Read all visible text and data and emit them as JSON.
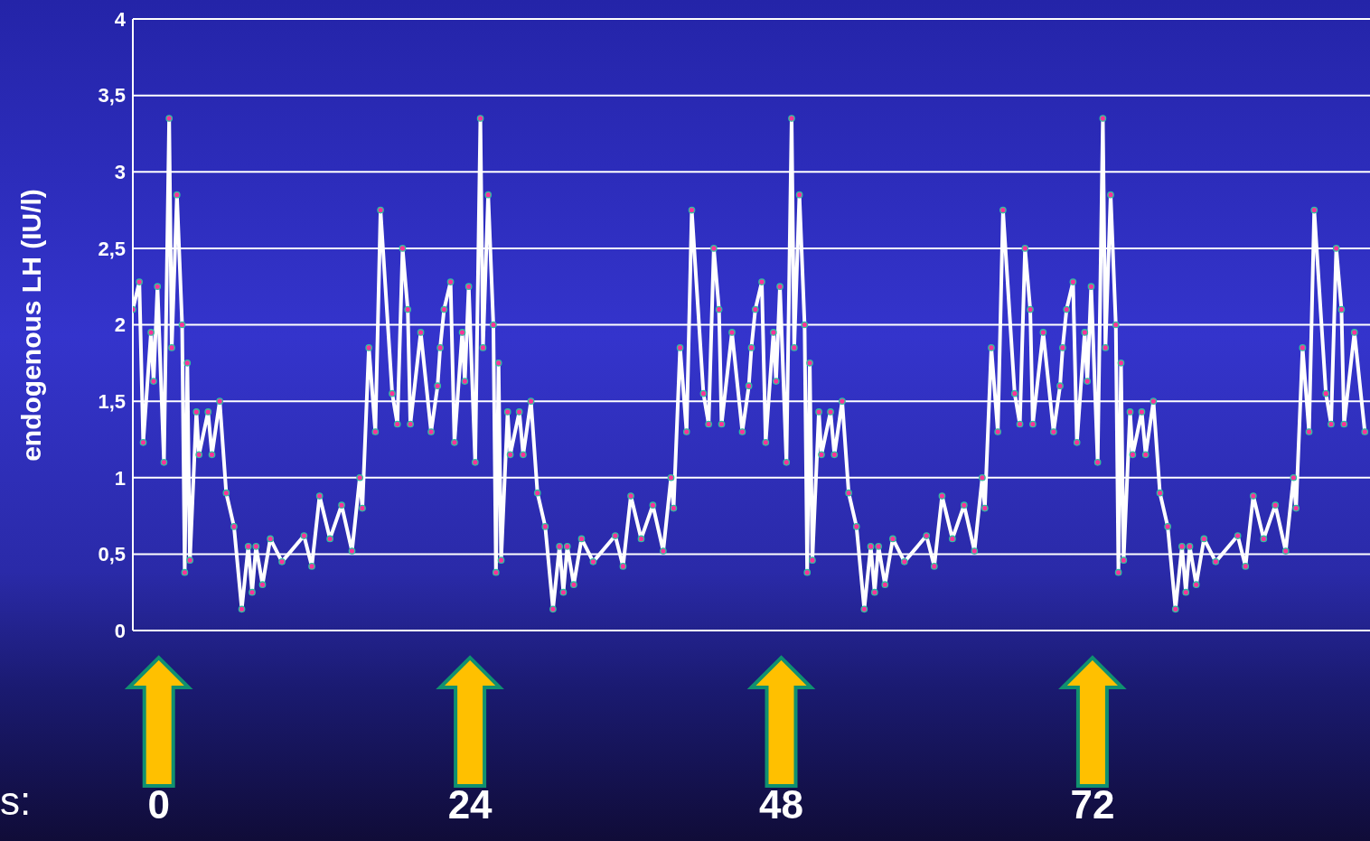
{
  "chart_data": {
    "type": "line",
    "ylabel": "endogenous LH (IU/l)",
    "xlabel": "s:",
    "x": [
      -2.0,
      -1.5,
      -1.2,
      -0.6,
      -0.4,
      -0.1,
      0.4,
      0.8,
      1.0,
      1.4,
      1.8,
      2.0,
      2.2,
      2.4,
      2.9,
      3.1,
      3.8,
      4.1,
      4.7,
      5.2,
      5.8,
      6.4,
      6.9,
      7.2,
      7.5,
      8.0,
      8.6,
      9.5,
      11.2,
      11.8,
      12.4,
      13.2,
      14.1,
      14.9,
      15.5,
      15.7,
      16.2,
      16.7,
      17.1,
      18.0,
      18.4,
      18.8,
      19.2,
      19.4,
      20.2,
      21.0,
      21.5,
      21.7,
      22.0,
      22.5,
      22.8,
      23.4,
      23.6,
      23.9,
      24.4,
      24.8,
      25.0,
      25.4,
      25.8,
      26.0,
      26.2,
      26.4,
      26.9,
      27.1,
      27.8,
      28.1,
      28.7,
      29.2,
      29.8,
      30.4,
      30.9,
      31.2,
      31.5,
      32.0,
      32.6,
      33.5,
      35.2,
      35.8,
      36.4,
      37.2,
      38.1,
      38.9,
      39.5,
      39.7,
      40.2,
      40.7,
      41.1,
      42.0,
      42.4,
      42.8,
      43.2,
      43.4,
      44.2,
      45.0,
      45.5,
      45.7,
      46.0,
      46.5,
      46.8,
      47.4,
      47.6,
      47.9,
      48.4,
      48.8,
      49.0,
      49.4,
      49.8,
      50.0,
      50.2,
      50.4,
      50.9,
      51.1,
      51.8,
      52.1,
      52.7,
      53.2,
      53.8,
      54.4,
      54.9,
      55.2,
      55.5,
      56.0,
      56.6,
      57.5,
      59.2,
      59.8,
      60.4,
      61.2,
      62.1,
      62.9,
      63.5,
      63.7,
      64.2,
      64.7,
      65.1,
      66.0,
      66.4,
      66.8,
      67.2,
      67.4,
      68.2,
      69.0,
      69.5,
      69.7,
      70.0,
      70.5,
      70.8,
      71.4,
      71.6,
      71.9,
      72.4,
      72.8,
      73.0,
      73.4,
      73.8,
      74.0,
      74.2,
      74.4,
      74.9,
      75.1,
      75.8,
      76.1,
      76.7,
      77.2,
      77.8,
      78.4,
      78.9,
      79.2,
      79.5,
      80.0,
      80.6,
      81.5,
      83.2,
      83.8,
      84.4,
      85.2,
      86.1,
      86.9,
      87.5,
      87.7,
      88.2,
      88.7,
      89.1,
      90.0,
      90.4,
      90.8,
      91.2,
      91.4,
      92.2,
      93.0
    ],
    "series": [
      {
        "color": "#ffffff",
        "values": [
          2.1,
          2.28,
          1.23,
          1.95,
          1.63,
          2.25,
          1.1,
          3.35,
          1.85,
          2.85,
          2.0,
          0.38,
          1.75,
          0.46,
          1.43,
          1.15,
          1.43,
          1.15,
          1.5,
          0.9,
          0.68,
          0.14,
          0.55,
          0.25,
          0.55,
          0.3,
          0.6,
          0.45,
          0.62,
          0.42,
          0.88,
          0.6,
          0.82,
          0.52,
          1.0,
          0.8,
          1.85,
          1.3,
          2.75,
          1.55,
          1.35,
          2.5,
          2.1,
          1.35,
          1.95,
          1.3,
          1.6,
          1.85,
          2.1,
          2.28,
          1.23,
          1.95,
          1.63,
          2.25,
          1.1,
          3.35,
          1.85,
          2.85,
          2.0,
          0.38,
          1.75,
          0.46,
          1.43,
          1.15,
          1.43,
          1.15,
          1.5,
          0.9,
          0.68,
          0.14,
          0.55,
          0.25,
          0.55,
          0.3,
          0.6,
          0.45,
          0.62,
          0.42,
          0.88,
          0.6,
          0.82,
          0.52,
          1.0,
          0.8,
          1.85,
          1.3,
          2.75,
          1.55,
          1.35,
          2.5,
          2.1,
          1.35,
          1.95,
          1.3,
          1.6,
          1.85,
          2.1,
          2.28,
          1.23,
          1.95,
          1.63,
          2.25,
          1.1,
          3.35,
          1.85,
          2.85,
          2.0,
          0.38,
          1.75,
          0.46,
          1.43,
          1.15,
          1.43,
          1.15,
          1.5,
          0.9,
          0.68,
          0.14,
          0.55,
          0.25,
          0.55,
          0.3,
          0.6,
          0.45,
          0.62,
          0.42,
          0.88,
          0.6,
          0.82,
          0.52,
          1.0,
          0.8,
          1.85,
          1.3,
          2.75,
          1.55,
          1.35,
          2.5,
          2.1,
          1.35,
          1.95,
          1.3,
          1.6,
          1.85,
          2.1,
          2.28,
          1.23,
          1.95,
          1.63,
          2.25,
          1.1,
          3.35,
          1.85,
          2.85,
          2.0,
          0.38,
          1.75,
          0.46,
          1.43,
          1.15,
          1.43,
          1.15,
          1.5,
          0.9,
          0.68,
          0.14,
          0.55,
          0.25,
          0.55,
          0.3,
          0.6,
          0.45,
          0.62,
          0.42,
          0.88,
          0.6,
          0.82,
          0.52,
          1.0,
          0.8,
          1.85,
          1.3,
          2.75,
          1.55,
          1.35,
          2.5,
          2.1,
          1.35,
          1.95,
          1.3
        ]
      }
    ],
    "xlim": [
      -2,
      93.4
    ],
    "xticks": [
      0,
      24,
      48,
      72
    ],
    "ylim": [
      0,
      4
    ],
    "yticks": [
      0,
      {
        "value": 0.5,
        "label": "0,5"
      },
      1,
      {
        "value": 1.5,
        "label": "1,5"
      },
      2,
      {
        "value": 2.5,
        "label": "2,5"
      },
      3,
      {
        "value": 3.5,
        "label": "3,5"
      },
      4
    ],
    "grid": "y",
    "marker": "circle",
    "line_style": "solid"
  }
}
